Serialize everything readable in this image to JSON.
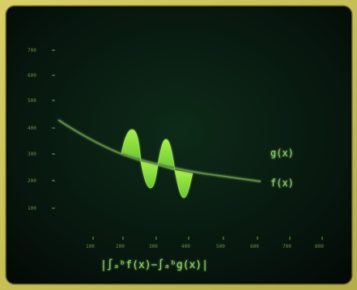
{
  "screen": {
    "curve_label_g": "g(x)",
    "curve_label_f": "f(x)",
    "formula": "|∫ₐᵇf(x)−∫ₐᵇg(x)|",
    "y_ticks": [
      "700",
      "600",
      "500",
      "400",
      "300",
      "200",
      "100"
    ],
    "x_ticks": [
      "100",
      "200",
      "300",
      "400",
      "500",
      "600",
      "700",
      "800"
    ]
  },
  "colors": {
    "frame": "#c8c05a",
    "screen_bg": "#07160e",
    "axis": "#6aa04a",
    "fill": "#8be03c",
    "curve": "#5f8a46"
  }
}
